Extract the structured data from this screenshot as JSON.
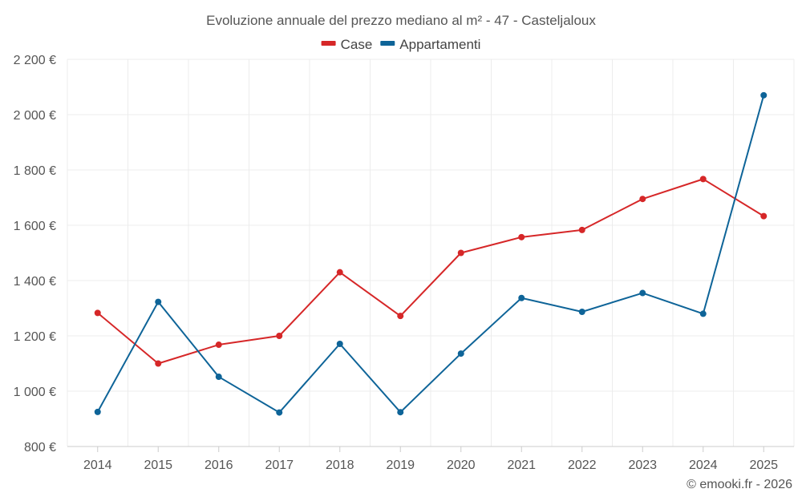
{
  "chart_data": {
    "type": "line",
    "title": "Evoluzione annuale del prezzo mediano al m² - 47 - Casteljaloux",
    "xlabel": "",
    "ylabel": "",
    "categories": [
      "2014",
      "2015",
      "2016",
      "2017",
      "2018",
      "2019",
      "2020",
      "2021",
      "2022",
      "2023",
      "2024",
      "2025"
    ],
    "ylim": [
      800,
      2200
    ],
    "yticks": [
      800,
      1000,
      1200,
      1400,
      1600,
      1800,
      2000,
      2200
    ],
    "ytick_labels": [
      "800 €",
      "1 000 €",
      "1 200 €",
      "1 400 €",
      "1 600 €",
      "1 800 €",
      "2 000 €",
      "2 200 €"
    ],
    "grid": true,
    "legend_position": "top-center",
    "series": [
      {
        "name": "Case",
        "color": "#d62728",
        "values": [
          1283,
          1100,
          1168,
          1200,
          1430,
          1272,
          1500,
          1557,
          1583,
          1695,
          1767,
          1633
        ]
      },
      {
        "name": "Appartamenti",
        "color": "#0e6498",
        "values": [
          925,
          1323,
          1052,
          923,
          1171,
          924,
          1136,
          1337,
          1287,
          1355,
          1280,
          2070
        ]
      }
    ]
  },
  "credit": "© emooki.fr - 2026"
}
